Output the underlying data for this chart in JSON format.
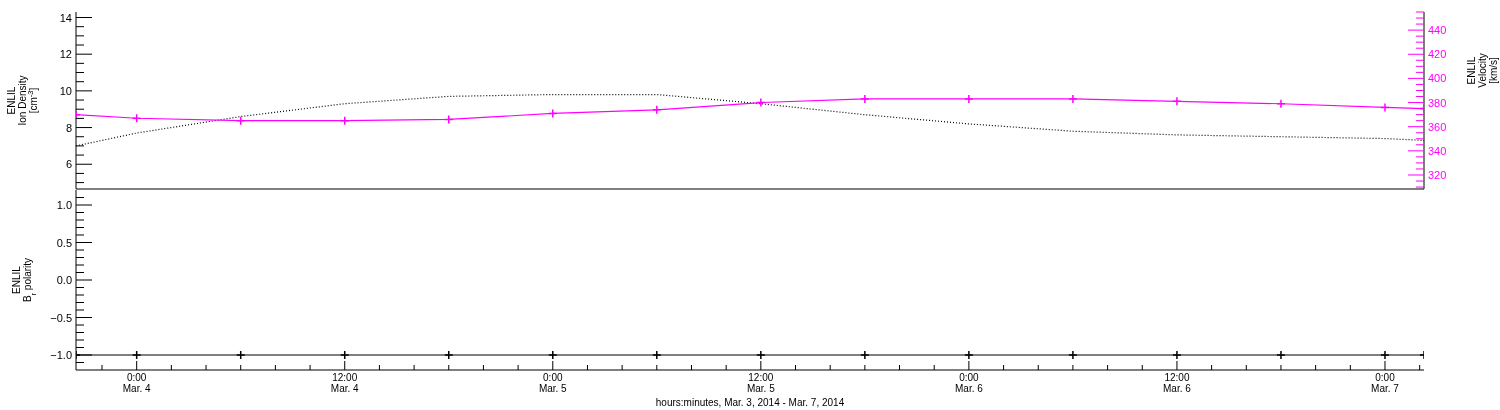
{
  "chart_data": [
    {
      "type": "line",
      "ylabel": "ENLIL\nIon Density\n[cm$^{-3}$]",
      "y2label": "ENLIL\nVelocity\n[km/s]",
      "tick_labels": "y",
      "x": [
        "2014-03-03T20:30",
        "2014-03-04T00:00",
        "2014-03-04T06:00",
        "2014-03-04T12:00",
        "2014-03-04T18:00",
        "2014-03-05T00:00",
        "2014-03-05T06:00",
        "2014-03-05T12:00",
        "2014-03-05T18:00",
        "2014-03-06T00:00",
        "2014-03-06T06:00",
        "2014-03-06T12:00",
        "2014-03-06T18:00",
        "2014-03-07T00:00",
        "2014-03-07T02:15"
      ],
      "xlim": [
        "2014-03-03T20:30",
        "2014-03-07T02:15"
      ],
      "series": [
        {
          "color": "#000000",
          "line_style": "dotted",
          "values": [
            7.0,
            7.7,
            8.6,
            9.3,
            9.7,
            9.8,
            9.8,
            9.3,
            8.7,
            8.2,
            7.8,
            7.6,
            7.5,
            7.4,
            7.3
          ]
        },
        {
          "color": "#ff00ff",
          "axis": "y2",
          "marker": "cross",
          "values": [
            370,
            367,
            365,
            365,
            366,
            371,
            374,
            380,
            383,
            383,
            383,
            381,
            379,
            376,
            375
          ]
        }
      ],
      "ylim": [
        4.65,
        14.3
      ],
      "yticks": [
        {
          "value": 5,
          "label": null
        },
        {
          "value": 5.5,
          "label": null
        },
        6,
        {
          "value": 6.5,
          "label": null
        },
        {
          "value": 7,
          "label": null
        },
        {
          "value": 7.5,
          "label": null
        },
        8,
        {
          "value": 8.5,
          "label": null
        },
        {
          "value": 9,
          "label": null
        },
        {
          "value": 9.5,
          "label": null
        },
        10,
        {
          "value": 10.5,
          "label": null
        },
        {
          "value": 11,
          "label": null
        },
        {
          "value": 11.5,
          "label": null
        },
        12,
        {
          "value": 12.5,
          "label": null
        },
        {
          "value": 13,
          "label": null
        },
        {
          "value": 13.5,
          "label": null
        },
        14
      ],
      "y2lim": [
        308.4,
        455
      ],
      "y2ticks": [
        {
          "value": 310,
          "label": null
        },
        {
          "value": 315,
          "label": null
        },
        320,
        {
          "value": 325,
          "label": null
        },
        {
          "value": 330,
          "label": null
        },
        {
          "value": 335,
          "label": null
        },
        340,
        {
          "value": 345,
          "label": null
        },
        {
          "value": 350,
          "label": null
        },
        {
          "value": 355,
          "label": null
        },
        360,
        {
          "value": 365,
          "label": null
        },
        {
          "value": 370,
          "label": null
        },
        {
          "value": 375,
          "label": null
        },
        380,
        {
          "value": 385,
          "label": null
        },
        {
          "value": 390,
          "label": null
        },
        {
          "value": 395,
          "label": null
        },
        400,
        {
          "value": 405,
          "label": null
        },
        {
          "value": 410,
          "label": null
        },
        {
          "value": 415,
          "label": null
        },
        420,
        {
          "value": 425,
          "label": null
        },
        {
          "value": 430,
          "label": null
        },
        {
          "value": 435,
          "label": null
        },
        440,
        {
          "value": 445,
          "label": null
        },
        {
          "value": 450,
          "label": null
        },
        {
          "value": 455,
          "label": null
        }
      ]
    },
    {
      "type": "line",
      "ylabel": "ENLIL\nB$_{r}$ polarity",
      "xlabel": "hours:minutes, Mar.  3, 2014 - Mar.  7, 2014",
      "x": [
        "2014-03-03T20:30",
        "2014-03-04T00:00",
        "2014-03-04T06:00",
        "2014-03-04T12:00",
        "2014-03-04T18:00",
        "2014-03-05T00:00",
        "2014-03-05T06:00",
        "2014-03-05T12:00",
        "2014-03-05T18:00",
        "2014-03-06T00:00",
        "2014-03-06T06:00",
        "2014-03-06T12:00",
        "2014-03-06T18:00",
        "2014-03-07T00:00",
        "2014-03-07T02:15"
      ],
      "xlim": [
        "2014-03-03T20:30",
        "2014-03-07T02:15"
      ],
      "series": [
        {
          "color": "#000000",
          "marker": "cross",
          "values": [
            -1,
            -1,
            -1,
            -1,
            -1,
            -1,
            -1,
            -1,
            -1,
            -1,
            -1,
            -1,
            -1,
            -1,
            -1
          ]
        }
      ],
      "ylim": [
        -1.2,
        1.2
      ],
      "yticks": [
        {
          "value": -1.1,
          "label": null
        },
        {
          "value": -1.0,
          "label": "−1.0"
        },
        {
          "value": -0.9,
          "label": null
        },
        {
          "value": -0.8,
          "label": null
        },
        {
          "value": -0.7,
          "label": null
        },
        {
          "value": -0.6,
          "label": null
        },
        {
          "value": -0.5,
          "label": "−0.5"
        },
        {
          "value": -0.4,
          "label": null
        },
        {
          "value": -0.3,
          "label": null
        },
        {
          "value": -0.2,
          "label": null
        },
        {
          "value": -0.1,
          "label": null
        },
        {
          "value": 0,
          "label": "0.0"
        },
        {
          "value": 0.1,
          "label": null
        },
        {
          "value": 0.2,
          "label": null
        },
        {
          "value": 0.3,
          "label": null
        },
        {
          "value": 0.4,
          "label": null
        },
        0.5,
        {
          "value": 0.6,
          "label": null
        },
        {
          "value": 0.7,
          "label": null
        },
        {
          "value": 0.8,
          "label": null
        },
        {
          "value": 0.9,
          "label": null
        },
        {
          "value": 1.0,
          "label": "1.0"
        },
        {
          "value": 1.1,
          "label": null
        }
      ],
      "xticks": [
        {
          "value": "2014-03-03T22:00",
          "label": null
        },
        {
          "value": "2014-03-04T00:00",
          "label": "0:00\nMar. 4"
        },
        {
          "value": "2014-03-04T02:00",
          "label": null
        },
        {
          "value": "2014-03-04T04:00",
          "label": null
        },
        {
          "value": "2014-03-04T06:00",
          "label": null
        },
        {
          "value": "2014-03-04T08:00",
          "label": null
        },
        {
          "value": "2014-03-04T10:00",
          "label": null
        },
        {
          "value": "2014-03-04T12:00",
          "label": "12:00\nMar. 4"
        },
        {
          "value": "2014-03-04T14:00",
          "label": null
        },
        {
          "value": "2014-03-04T16:00",
          "label": null
        },
        {
          "value": "2014-03-04T18:00",
          "label": null
        },
        {
          "value": "2014-03-04T20:00",
          "label": null
        },
        {
          "value": "2014-03-04T22:00",
          "label": null
        },
        {
          "value": "2014-03-05T00:00",
          "label": "0:00\nMar. 5"
        },
        {
          "value": "2014-03-05T02:00",
          "label": null
        },
        {
          "value": "2014-03-05T04:00",
          "label": null
        },
        {
          "value": "2014-03-05T06:00",
          "label": null
        },
        {
          "value": "2014-03-05T08:00",
          "label": null
        },
        {
          "value": "2014-03-05T10:00",
          "label": null
        },
        {
          "value": "2014-03-05T12:00",
          "label": "12:00\nMar. 5"
        },
        {
          "value": "2014-03-05T14:00",
          "label": null
        },
        {
          "value": "2014-03-05T16:00",
          "label": null
        },
        {
          "value": "2014-03-05T18:00",
          "label": null
        },
        {
          "value": "2014-03-05T20:00",
          "label": null
        },
        {
          "value": "2014-03-05T22:00",
          "label": null
        },
        {
          "value": "2014-03-06T00:00",
          "label": "0:00\nMar. 6"
        },
        {
          "value": "2014-03-06T02:00",
          "label": null
        },
        {
          "value": "2014-03-06T04:00",
          "label": null
        },
        {
          "value": "2014-03-06T06:00",
          "label": null
        },
        {
          "value": "2014-03-06T08:00",
          "label": null
        },
        {
          "value": "2014-03-06T10:00",
          "label": null
        },
        {
          "value": "2014-03-06T12:00",
          "label": "12:00\nMar. 6"
        },
        {
          "value": "2014-03-06T14:00",
          "label": null
        },
        {
          "value": "2014-03-06T16:00",
          "label": null
        },
        {
          "value": "2014-03-06T18:00",
          "label": null
        },
        {
          "value": "2014-03-06T20:00",
          "label": null
        },
        {
          "value": "2014-03-06T22:00",
          "label": null
        },
        {
          "value": "2014-03-07T00:00",
          "label": "0:00\nMar. 7"
        },
        {
          "value": "2014-03-07T02:00",
          "label": null
        }
      ]
    }
  ]
}
